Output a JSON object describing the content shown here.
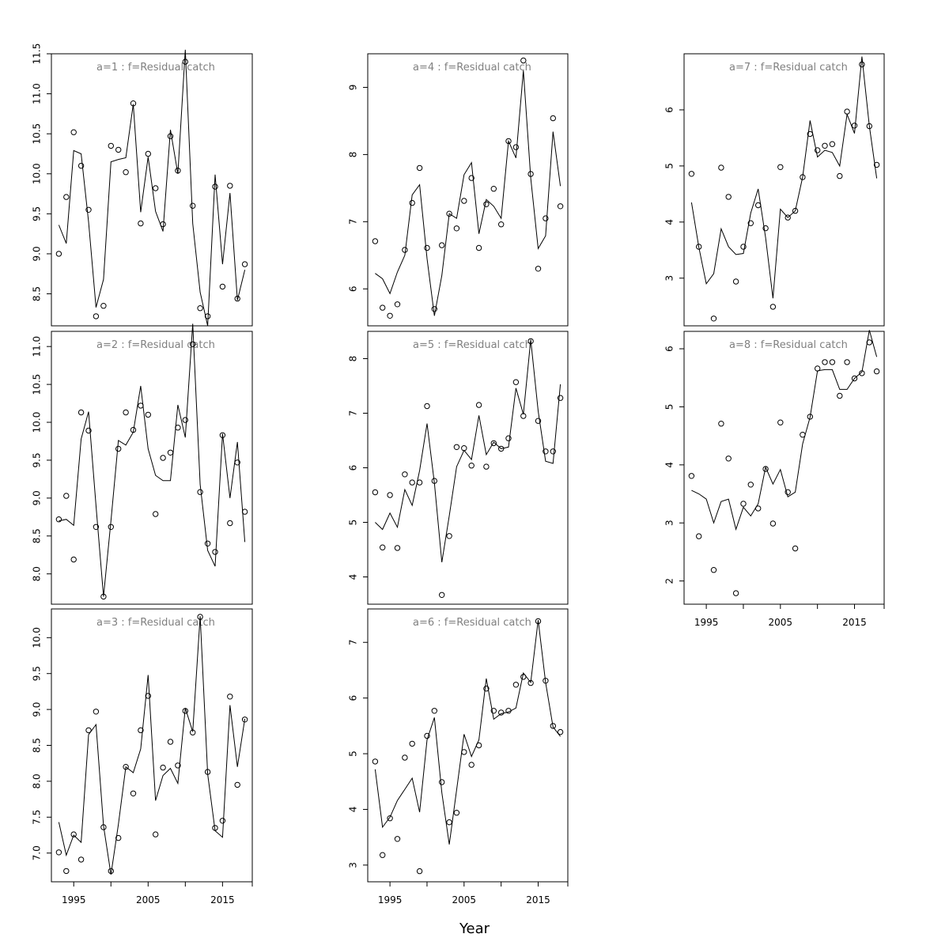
{
  "chart_data": {
    "type": "line",
    "xlabel": "Year",
    "x": [
      1993,
      1994,
      1995,
      1996,
      1997,
      1998,
      1999,
      2000,
      2001,
      2002,
      2003,
      2004,
      2005,
      2006,
      2007,
      2008,
      2009,
      2010,
      2011,
      2012,
      2013,
      2014,
      2015,
      2016,
      2017,
      2018
    ],
    "x_ticks": [
      1995,
      2005,
      2015
    ],
    "xlim": [
      1992,
      2019
    ],
    "panels": [
      {
        "title": "a=1  :  f=Residual catch",
        "ylim": [
          8.1,
          11.5
        ],
        "y_ticks": [
          8.5,
          9.0,
          9.5,
          10.0,
          10.5,
          11.0,
          11.5
        ],
        "y_tick_labels": [
          "8.5",
          "9.0",
          "9.5",
          "10.0",
          "10.5",
          "11.0",
          "11.5"
        ],
        "line": [
          9.36,
          9.13,
          10.29,
          10.25,
          9.4,
          8.33,
          8.68,
          10.15,
          10.18,
          10.2,
          10.87,
          9.52,
          10.21,
          9.53,
          9.28,
          10.55,
          10.0,
          11.55,
          9.38,
          8.52,
          8.1,
          9.99,
          8.87,
          9.76,
          8.42,
          8.8
        ],
        "points": [
          9.0,
          9.71,
          10.52,
          10.1,
          9.55,
          8.22,
          8.35,
          10.35,
          10.3,
          10.02,
          10.88,
          9.38,
          10.25,
          9.82,
          9.37,
          10.47,
          10.04,
          11.4,
          9.6,
          8.32,
          8.22,
          9.84,
          8.59,
          9.85,
          8.44,
          8.87
        ],
        "show_x_axis": false
      },
      {
        "title": "a=2  :  f=Residual catch",
        "ylim": [
          7.6,
          11.2
        ],
        "y_ticks": [
          8.0,
          8.5,
          9.0,
          9.5,
          10.0,
          10.5,
          11.0
        ],
        "y_tick_labels": [
          "8.0",
          "8.5",
          "9.0",
          "9.5",
          "10.0",
          "10.5",
          "11.0"
        ],
        "line": [
          8.7,
          8.72,
          8.64,
          9.78,
          10.14,
          8.9,
          7.7,
          8.7,
          9.76,
          9.7,
          9.87,
          10.48,
          9.65,
          9.3,
          9.23,
          9.23,
          10.23,
          9.8,
          11.3,
          9.18,
          8.31,
          8.1,
          9.85,
          9.0,
          9.74,
          8.42
        ],
        "points": [
          8.72,
          9.03,
          8.19,
          10.13,
          9.89,
          8.62,
          7.7,
          8.62,
          9.65,
          10.13,
          9.9,
          10.22,
          10.1,
          8.79,
          9.53,
          9.6,
          9.93,
          10.03,
          11.03,
          9.08,
          8.4,
          8.29,
          9.83,
          8.67,
          9.47,
          8.82
        ],
        "show_x_axis": false
      },
      {
        "title": "a=3  :  f=Residual catch",
        "ylim": [
          6.6,
          10.4
        ],
        "y_ticks": [
          7.0,
          7.5,
          8.0,
          8.5,
          9.0,
          9.5,
          10.0
        ],
        "y_tick_labels": [
          "7.0",
          "7.5",
          "8.0",
          "8.5",
          "9.0",
          "9.5",
          "10.0"
        ],
        "line": [
          7.43,
          6.97,
          7.25,
          7.15,
          8.65,
          8.79,
          7.38,
          6.7,
          7.4,
          8.2,
          8.12,
          8.45,
          9.48,
          7.73,
          8.08,
          8.18,
          7.97,
          9.02,
          8.69,
          10.3,
          8.1,
          7.31,
          7.22,
          9.06,
          8.2,
          8.87
        ],
        "points": [
          7.01,
          6.75,
          7.26,
          6.91,
          8.71,
          8.97,
          7.36,
          6.75,
          7.21,
          8.2,
          7.83,
          8.71,
          9.19,
          7.26,
          8.19,
          8.55,
          8.22,
          8.98,
          8.68,
          10.29,
          8.13,
          7.35,
          7.45,
          9.18,
          7.95,
          8.86
        ],
        "show_x_axis": true
      },
      {
        "title": "a=4  :  f=Residual catch",
        "ylim": [
          5.45,
          9.5
        ],
        "y_ticks": [
          6,
          7,
          8,
          9
        ],
        "y_tick_labels": [
          "6",
          "7",
          "8",
          "9"
        ],
        "line": [
          6.23,
          6.15,
          5.93,
          6.25,
          6.5,
          7.4,
          7.55,
          6.45,
          5.6,
          6.2,
          7.12,
          7.05,
          7.7,
          7.88,
          6.82,
          7.33,
          7.23,
          7.05,
          8.2,
          7.95,
          9.25,
          7.65,
          6.6,
          6.79,
          8.34,
          7.53
        ],
        "points": [
          6.71,
          5.72,
          5.6,
          5.77,
          6.58,
          7.28,
          7.8,
          6.61,
          5.7,
          6.65,
          7.12,
          6.9,
          7.31,
          7.65,
          6.61,
          7.26,
          7.49,
          6.96,
          8.2,
          8.11,
          9.4,
          7.71,
          6.3,
          7.05,
          8.54,
          7.23
        ],
        "show_x_axis": false
      },
      {
        "title": "a=5  :  f=Residual catch",
        "ylim": [
          3.5,
          8.5
        ],
        "y_ticks": [
          4,
          5,
          6,
          7,
          8
        ],
        "y_tick_labels": [
          "4",
          "5",
          "6",
          "7",
          "8"
        ],
        "line": [
          5.0,
          4.87,
          5.17,
          4.91,
          5.6,
          5.31,
          5.95,
          6.81,
          5.72,
          4.27,
          5.12,
          6.02,
          6.32,
          6.15,
          6.96,
          6.24,
          6.47,
          6.35,
          6.38,
          7.46,
          6.98,
          8.35,
          7.04,
          6.12,
          6.08,
          7.53
        ],
        "points": [
          5.55,
          4.54,
          5.5,
          4.53,
          5.88,
          5.73,
          5.73,
          7.13,
          5.76,
          3.67,
          4.75,
          6.38,
          6.36,
          6.04,
          7.15,
          6.02,
          6.45,
          6.35,
          6.54,
          7.57,
          6.95,
          8.32,
          6.86,
          6.3,
          6.3,
          7.28
        ],
        "show_x_axis": false
      },
      {
        "title": "a=6  :  f=Residual catch",
        "ylim": [
          2.7,
          7.6
        ],
        "y_ticks": [
          3,
          4,
          5,
          6,
          7
        ],
        "y_tick_labels": [
          "3",
          "4",
          "5",
          "6",
          "7"
        ],
        "line": [
          4.72,
          3.68,
          3.86,
          4.16,
          4.36,
          4.56,
          3.95,
          5.25,
          5.65,
          4.3,
          3.37,
          4.35,
          5.35,
          4.95,
          5.25,
          6.35,
          5.62,
          5.72,
          5.75,
          5.82,
          6.45,
          6.28,
          7.4,
          6.28,
          5.48,
          5.31
        ],
        "points": [
          4.86,
          3.18,
          3.84,
          3.47,
          4.93,
          5.18,
          2.89,
          5.32,
          5.77,
          4.49,
          3.77,
          3.94,
          5.03,
          4.8,
          5.15,
          6.17,
          5.77,
          5.74,
          5.77,
          6.24,
          6.38,
          6.27,
          7.38,
          6.31,
          5.5,
          5.39
        ],
        "show_x_axis": true
      },
      {
        "title": "a=7  :  f=Residual catch",
        "ylim": [
          2.15,
          7.0
        ],
        "y_ticks": [
          3,
          4,
          5,
          6
        ],
        "y_tick_labels": [
          "3",
          "4",
          "5",
          "6"
        ],
        "line": [
          4.35,
          3.55,
          2.9,
          3.08,
          3.88,
          3.56,
          3.42,
          3.44,
          4.16,
          4.59,
          3.72,
          2.64,
          4.23,
          4.08,
          4.2,
          4.8,
          5.81,
          5.16,
          5.28,
          5.24,
          5.0,
          5.92,
          5.58,
          6.95,
          5.71,
          4.78
        ],
        "points": [
          4.86,
          3.56,
          null,
          2.28,
          4.97,
          4.45,
          2.94,
          3.56,
          3.98,
          4.3,
          3.89,
          2.49,
          4.98,
          4.08,
          4.2,
          4.8,
          5.57,
          5.28,
          5.36,
          5.39,
          4.82,
          5.97,
          5.72,
          6.81,
          5.71,
          5.02
        ],
        "show_x_axis": false
      },
      {
        "title": "a=8  :  f=Residual catch",
        "ylim": [
          1.6,
          6.3
        ],
        "y_ticks": [
          2,
          3,
          4,
          5,
          6
        ],
        "y_tick_labels": [
          "2",
          "3",
          "4",
          "5",
          "6"
        ],
        "line": [
          3.56,
          3.5,
          3.41,
          3.0,
          3.37,
          3.41,
          2.89,
          3.27,
          3.12,
          3.33,
          3.96,
          3.67,
          3.92,
          3.45,
          3.53,
          4.36,
          4.82,
          5.62,
          5.64,
          5.64,
          5.3,
          5.3,
          5.49,
          5.6,
          6.32,
          5.86
        ],
        "points": [
          3.81,
          2.77,
          null,
          2.19,
          4.71,
          4.11,
          1.79,
          3.33,
          3.66,
          3.25,
          3.93,
          2.99,
          4.73,
          3.53,
          2.56,
          4.52,
          4.83,
          5.66,
          5.77,
          5.77,
          5.19,
          5.77,
          5.49,
          5.58,
          6.11,
          5.61
        ],
        "show_x_axis": true
      }
    ]
  }
}
